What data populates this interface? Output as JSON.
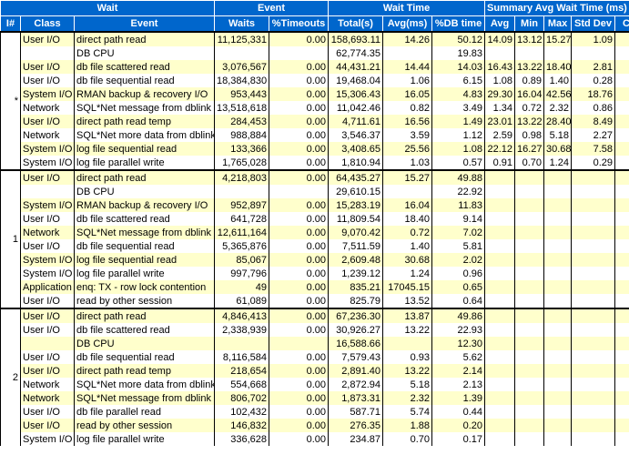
{
  "header": {
    "groups": [
      "Wait",
      "Event",
      "Wait Time",
      "Summary Avg Wait Time (ms)"
    ],
    "columns": [
      "I#",
      "Class",
      "Event",
      "Waits",
      "%Timeouts",
      "Total(s)",
      "Avg(ms)",
      "%DB time",
      "Avg",
      "Min",
      "Max",
      "Std Dev",
      "C"
    ]
  },
  "table": {
    "groups": [
      {
        "instance": "*",
        "rows": [
          [
            "User I/O",
            "direct path read",
            "11,125,331",
            "0.00",
            "158,693.11",
            "14.26",
            "50.12",
            "14.09",
            "13.12",
            "15.27",
            "1.09"
          ],
          [
            null,
            "DB CPU",
            null,
            null,
            "62,774.35",
            null,
            "19.83"
          ],
          [
            "User I/O",
            "db file scattered read",
            "3,076,567",
            "0.00",
            "44,431.21",
            "14.44",
            "14.03",
            "16.43",
            "13.22",
            "18.40",
            "2.81"
          ],
          [
            "User I/O",
            "db file sequential read",
            "18,384,830",
            "0.00",
            "19,468.04",
            "1.06",
            "6.15",
            "1.08",
            "0.89",
            "1.40",
            "0.28"
          ],
          [
            "System I/O",
            "RMAN backup & recovery I/O",
            "953,443",
            "0.00",
            "15,306.43",
            "16.05",
            "4.83",
            "29.30",
            "16.04",
            "42.56",
            "18.76"
          ],
          [
            "Network",
            "SQL*Net message from dblink",
            "13,518,618",
            "0.00",
            "11,042.46",
            "0.82",
            "3.49",
            "1.34",
            "0.72",
            "2.32",
            "0.86"
          ],
          [
            "User I/O",
            "direct path read temp",
            "284,453",
            "0.00",
            "4,711.61",
            "16.56",
            "1.49",
            "23.01",
            "13.22",
            "28.40",
            "8.49"
          ],
          [
            "Network",
            "SQL*Net more data from dblink",
            "988,884",
            "0.00",
            "3,546.37",
            "3.59",
            "1.12",
            "2.59",
            "0.98",
            "5.18",
            "2.27"
          ],
          [
            "System I/O",
            "log file sequential read",
            "133,366",
            "0.00",
            "3,408.65",
            "25.56",
            "1.08",
            "22.12",
            "16.27",
            "30.68",
            "7.58"
          ],
          [
            "System I/O",
            "log file parallel write",
            "1,765,028",
            "0.00",
            "1,810.94",
            "1.03",
            "0.57",
            "0.91",
            "0.70",
            "1.24",
            "0.29"
          ]
        ]
      },
      {
        "instance": "1",
        "rows": [
          [
            "User I/O",
            "direct path read",
            "4,218,803",
            "0.00",
            "64,435.27",
            "15.27",
            "49.88"
          ],
          [
            null,
            "DB CPU",
            null,
            null,
            "29,610.15",
            null,
            "22.92"
          ],
          [
            "System I/O",
            "RMAN backup & recovery I/O",
            "952,897",
            "0.00",
            "15,283.19",
            "16.04",
            "11.83"
          ],
          [
            "User I/O",
            "db file scattered read",
            "641,728",
            "0.00",
            "11,809.54",
            "18.40",
            "9.14"
          ],
          [
            "Network",
            "SQL*Net message from dblink",
            "12,611,164",
            "0.00",
            "9,070.42",
            "0.72",
            "7.02"
          ],
          [
            "User I/O",
            "db file sequential read",
            "5,365,876",
            "0.00",
            "7,511.59",
            "1.40",
            "5.81"
          ],
          [
            "System I/O",
            "log file sequential read",
            "85,067",
            "0.00",
            "2,609.48",
            "30.68",
            "2.02"
          ],
          [
            "System I/O",
            "log file parallel write",
            "997,796",
            "0.00",
            "1,239.12",
            "1.24",
            "0.96"
          ],
          [
            "Application",
            "enq: TX - row lock contention",
            "49",
            "0.00",
            "835.21",
            "17045.15",
            "0.65"
          ],
          [
            "User I/O",
            "read by other session",
            "61,089",
            "0.00",
            "825.79",
            "13.52",
            "0.64"
          ]
        ]
      },
      {
        "instance": "2",
        "rows": [
          [
            "User I/O",
            "direct path read",
            "4,846,413",
            "0.00",
            "67,236.30",
            "13.87",
            "49.86"
          ],
          [
            "User I/O",
            "db file scattered read",
            "2,338,939",
            "0.00",
            "30,926.27",
            "13.22",
            "22.93"
          ],
          [
            null,
            "DB CPU",
            null,
            null,
            "16,588.66",
            null,
            "12.30"
          ],
          [
            "User I/O",
            "db file sequential read",
            "8,116,584",
            "0.00",
            "7,579.43",
            "0.93",
            "5.62"
          ],
          [
            "User I/O",
            "direct path read temp",
            "218,654",
            "0.00",
            "2,891.40",
            "13.22",
            "2.14"
          ],
          [
            "Network",
            "SQL*Net more data from dblink",
            "554,668",
            "0.00",
            "2,872.94",
            "5.18",
            "2.13"
          ],
          [
            "Network",
            "SQL*Net message from dblink",
            "806,702",
            "0.00",
            "1,873.31",
            "2.32",
            "1.39"
          ],
          [
            "User I/O",
            "db file parallel read",
            "102,432",
            "0.00",
            "587.71",
            "5.74",
            "0.44"
          ],
          [
            "User I/O",
            "read by other session",
            "146,832",
            "0.00",
            "276.35",
            "1.88",
            "0.20"
          ],
          [
            "System I/O",
            "log file parallel write",
            "336,628",
            "0.00",
            "234.87",
            "0.70",
            "0.17"
          ]
        ]
      }
    ]
  }
}
